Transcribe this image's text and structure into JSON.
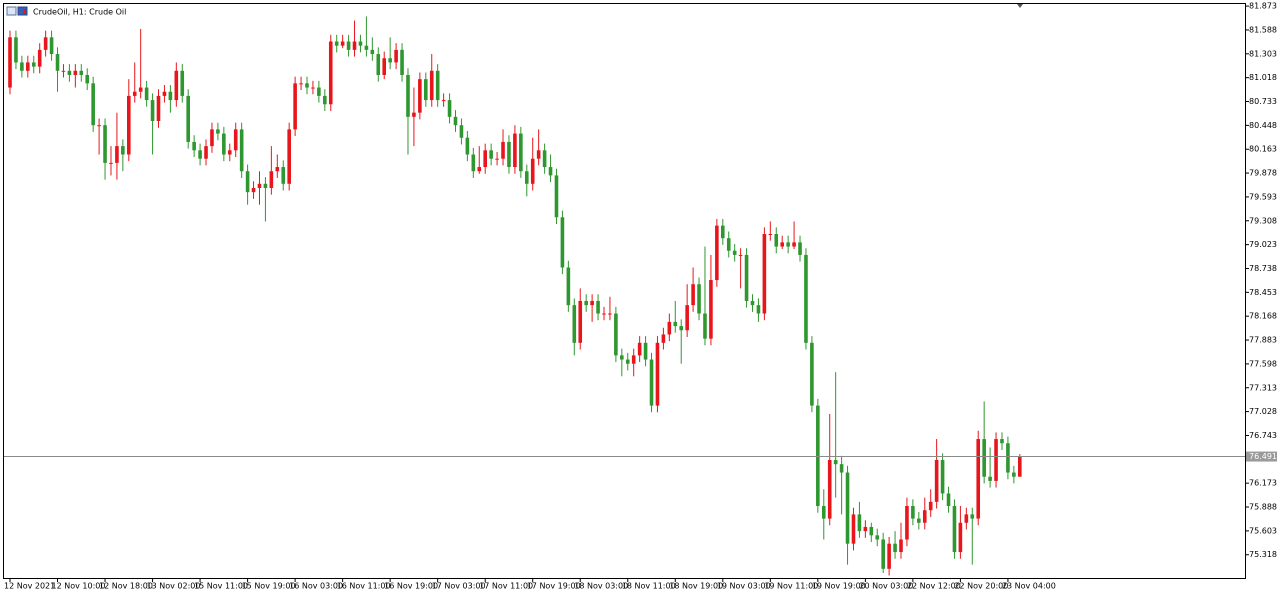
{
  "chart_data": {
    "type": "candlestick",
    "title": "CrudeOil, H1:  Crude Oil",
    "categories": [
      "12 Nov 2021",
      null,
      null,
      null,
      null,
      null,
      null,
      null,
      "12 Nov 10:00",
      null,
      null,
      null,
      null,
      null,
      null,
      null,
      "12 Nov 18:00",
      null,
      null,
      null,
      null,
      null,
      null,
      null,
      "13 Nov 02:00",
      null,
      null,
      null,
      null,
      null,
      null,
      null,
      "15 Nov 11:00",
      null,
      null,
      null,
      null,
      null,
      null,
      null,
      "15 Nov 19:00",
      null,
      null,
      null,
      null,
      null,
      null,
      null,
      "16 Nov 03:00",
      null,
      null,
      null,
      null,
      null,
      null,
      null,
      "16 Nov 11:00",
      null,
      null,
      null,
      null,
      null,
      null,
      null,
      "16 Nov 19:00",
      null,
      null,
      null,
      null,
      null,
      null,
      null,
      "17 Nov 03:00",
      null,
      null,
      null,
      null,
      null,
      null,
      null,
      "17 Nov 11:00",
      null,
      null,
      null,
      null,
      null,
      null,
      null,
      "17 Nov 19:00",
      null,
      null,
      null,
      null,
      null,
      null,
      null,
      "18 Nov 03:00",
      null,
      null,
      null,
      null,
      null,
      null,
      null,
      "18 Nov 11:00",
      null,
      null,
      null,
      null,
      null,
      null,
      null,
      "18 Nov 19:00",
      null,
      null,
      null,
      null,
      null,
      null,
      null,
      "19 Nov 03:00",
      null,
      null,
      null,
      null,
      null,
      null,
      null,
      "19 Nov 11:00",
      null,
      null,
      null,
      null,
      null,
      null,
      null,
      "19 Nov 19:00",
      null,
      null,
      null,
      null,
      null,
      null,
      null,
      "20 Nov 03:00",
      null,
      null,
      null,
      null,
      null,
      null,
      null,
      "22 Nov 12:00",
      null,
      null,
      null,
      null,
      null,
      null,
      null,
      "22 Nov 20:00",
      null,
      null,
      null,
      null,
      null,
      null,
      null,
      "23 Nov 04:00",
      null,
      null
    ],
    "open": [
      80.9,
      81.5,
      81.2,
      81.1,
      81.2,
      81.15,
      81.35,
      81.5,
      81.3,
      81.1,
      81.1,
      81.05,
      81.1,
      81.05,
      80.95,
      80.45,
      80.45,
      80.0,
      80.0,
      80.2,
      80.1,
      80.8,
      80.85,
      80.9,
      80.75,
      80.5,
      80.8,
      80.85,
      80.75,
      81.1,
      80.8,
      80.25,
      80.15,
      80.05,
      80.2,
      80.4,
      80.35,
      80.1,
      80.15,
      80.4,
      79.9,
      79.65,
      79.7,
      79.75,
      79.7,
      79.9,
      79.95,
      79.75,
      80.4,
      80.95,
      80.95,
      80.9,
      80.9,
      80.8,
      80.7,
      81.45,
      81.4,
      81.45,
      81.35,
      81.45,
      81.4,
      81.35,
      81.3,
      81.05,
      81.25,
      81.2,
      81.35,
      81.05,
      80.55,
      80.6,
      81.0,
      80.75,
      81.1,
      80.75,
      80.75,
      80.55,
      80.45,
      80.3,
      80.1,
      79.9,
      79.95,
      80.15,
      80.05,
      80.05,
      80.25,
      79.95,
      80.35,
      79.9,
      79.75,
      80.05,
      80.15,
      79.95,
      79.85,
      79.35,
      78.75,
      78.3,
      77.85,
      78.35,
      78.3,
      78.35,
      78.2,
      78.2,
      78.2,
      77.7,
      77.65,
      77.6,
      77.7,
      77.85,
      77.65,
      77.1,
      77.85,
      77.95,
      78.1,
      78.05,
      78.0,
      78.3,
      78.55,
      78.2,
      77.9,
      78.6,
      79.25,
      79.1,
      78.95,
      78.9,
      78.9,
      78.35,
      78.3,
      78.2,
      79.15,
      79.15,
      79.0,
      79.05,
      79.0,
      79.05,
      78.9,
      77.85,
      77.1,
      75.9,
      75.75,
      76.45,
      76.4,
      76.3,
      75.45,
      75.8,
      75.6,
      75.65,
      75.55,
      75.5,
      75.15,
      75.45,
      75.35,
      75.5,
      75.9,
      75.75,
      75.7,
      75.85,
      75.95,
      76.45,
      76.05,
      75.9,
      75.35,
      75.7,
      75.8,
      75.75,
      76.7,
      76.25,
      76.2,
      76.7,
      76.65,
      76.3,
      76.25
    ],
    "high": [
      81.58,
      81.58,
      81.28,
      81.28,
      81.28,
      81.43,
      81.58,
      81.58,
      81.38,
      81.18,
      81.18,
      81.18,
      81.18,
      81.13,
      81.03,
      80.53,
      80.53,
      80.2,
      80.6,
      80.28,
      81.0,
      81.2,
      81.6,
      80.98,
      80.83,
      80.88,
      80.93,
      80.93,
      81.2,
      81.18,
      80.88,
      80.33,
      80.23,
      80.28,
      80.48,
      80.48,
      80.43,
      80.23,
      80.48,
      80.48,
      79.98,
      79.78,
      79.9,
      79.83,
      80.2,
      80.1,
      80.03,
      80.48,
      81.03,
      81.03,
      81.03,
      80.98,
      80.98,
      80.88,
      81.53,
      81.53,
      81.53,
      81.53,
      81.7,
      81.53,
      81.75,
      81.5,
      81.38,
      81.33,
      81.5,
      81.43,
      81.43,
      81.13,
      80.9,
      81.08,
      81.08,
      81.3,
      81.18,
      80.83,
      80.83,
      80.63,
      80.53,
      80.38,
      80.18,
      80.2,
      80.23,
      80.23,
      80.13,
      80.4,
      80.33,
      80.45,
      80.43,
      79.98,
      80.3,
      80.4,
      80.23,
      80.1,
      79.93,
      79.43,
      78.83,
      78.38,
      78.5,
      78.43,
      78.43,
      78.43,
      78.28,
      78.4,
      78.28,
      77.78,
      77.73,
      77.78,
      77.93,
      77.93,
      77.73,
      77.93,
      78.03,
      78.2,
      78.35,
      78.13,
      78.55,
      78.75,
      78.63,
      79.0,
      78.9,
      79.33,
      79.33,
      79.18,
      79.03,
      78.98,
      78.98,
      78.43,
      78.38,
      79.23,
      79.3,
      79.23,
      79.13,
      79.13,
      79.3,
      79.13,
      78.98,
      77.93,
      77.18,
      76.1,
      77.0,
      77.5,
      76.5,
      76.38,
      75.88,
      75.95,
      75.73,
      75.7,
      75.63,
      75.58,
      75.53,
      75.6,
      75.7,
      76.0,
      75.98,
      75.83,
      76.0,
      76.1,
      76.7,
      76.53,
      76.13,
      75.98,
      75.9,
      75.88,
      75.88,
      76.8,
      77.15,
      76.6,
      76.78,
      76.78,
      76.73,
      76.38,
      76.52
    ],
    "low": [
      80.82,
      81.12,
      81.02,
      81.02,
      81.07,
      81.07,
      81.27,
      81.22,
      80.85,
      81.02,
      80.97,
      80.9,
      80.97,
      80.87,
      80.37,
      80.1,
      79.8,
      79.85,
      79.8,
      79.9,
      80.02,
      80.72,
      80.77,
      80.67,
      80.1,
      80.42,
      80.72,
      80.6,
      80.67,
      80.72,
      80.17,
      80.07,
      79.97,
      79.97,
      80.12,
      80.27,
      80.02,
      80.02,
      80.07,
      79.82,
      79.5,
      79.57,
      79.5,
      79.3,
      79.62,
      79.82,
      79.67,
      79.67,
      80.32,
      80.87,
      80.82,
      80.82,
      80.72,
      80.62,
      80.62,
      81.32,
      81.37,
      81.27,
      81.27,
      81.32,
      81.27,
      81.22,
      80.97,
      81.0,
      81.12,
      81.12,
      80.97,
      80.1,
      80.2,
      80.52,
      80.67,
      80.67,
      80.67,
      80.67,
      80.47,
      80.37,
      80.22,
      80.02,
      79.82,
      79.87,
      79.87,
      79.97,
      79.97,
      79.97,
      79.87,
      79.87,
      79.82,
      79.6,
      79.67,
      79.97,
      79.87,
      79.77,
      79.27,
      78.67,
      78.22,
      77.7,
      77.77,
      78.22,
      78.1,
      78.12,
      78.12,
      78.12,
      77.62,
      77.45,
      77.52,
      77.45,
      77.62,
      77.57,
      77.02,
      77.02,
      77.77,
      77.87,
      77.97,
      77.6,
      77.92,
      78.22,
      78.12,
      77.82,
      77.82,
      78.52,
      79.02,
      78.87,
      78.82,
      78.5,
      78.27,
      78.22,
      78.1,
      78.12,
      79.07,
      78.92,
      78.97,
      78.92,
      78.97,
      78.82,
      77.77,
      77.02,
      75.82,
      75.5,
      75.67,
      76.0,
      75.8,
      75.2,
      75.37,
      75.52,
      75.52,
      75.47,
      75.42,
      75.1,
      75.07,
      75.27,
      75.27,
      75.42,
      75.67,
      75.62,
      75.62,
      75.77,
      75.87,
      75.97,
      75.82,
      75.27,
      75.27,
      75.62,
      75.2,
      75.67,
      76.17,
      76.12,
      76.12,
      76.57,
      76.22,
      76.17,
      76.3
    ],
    "close": [
      81.5,
      81.2,
      81.1,
      81.2,
      81.15,
      81.35,
      81.5,
      81.3,
      81.1,
      81.1,
      81.05,
      81.1,
      81.05,
      80.95,
      80.45,
      80.45,
      80.0,
      80.0,
      80.2,
      80.1,
      80.8,
      80.85,
      80.9,
      80.75,
      80.5,
      80.8,
      80.85,
      80.75,
      81.1,
      80.8,
      80.25,
      80.15,
      80.05,
      80.2,
      80.4,
      80.35,
      80.1,
      80.15,
      80.4,
      79.9,
      79.65,
      79.7,
      79.75,
      79.7,
      79.9,
      79.95,
      79.75,
      80.4,
      80.95,
      80.95,
      80.9,
      80.9,
      80.8,
      80.7,
      81.45,
      81.4,
      81.45,
      81.35,
      81.45,
      81.4,
      81.35,
      81.3,
      81.05,
      81.25,
      81.2,
      81.35,
      81.05,
      80.55,
      80.6,
      81.0,
      80.75,
      81.1,
      80.75,
      80.75,
      80.55,
      80.45,
      80.3,
      80.1,
      79.9,
      79.95,
      80.15,
      80.05,
      80.05,
      80.25,
      79.95,
      80.35,
      79.9,
      79.75,
      80.05,
      80.15,
      79.95,
      79.85,
      79.35,
      78.75,
      78.3,
      77.85,
      78.35,
      78.3,
      78.35,
      78.2,
      78.2,
      78.2,
      77.7,
      77.65,
      77.6,
      77.7,
      77.85,
      77.65,
      77.1,
      77.85,
      77.95,
      78.1,
      78.05,
      78.0,
      78.3,
      78.55,
      78.2,
      77.9,
      78.6,
      79.25,
      79.1,
      78.95,
      78.9,
      78.9,
      78.35,
      78.3,
      78.2,
      79.15,
      79.15,
      79.0,
      79.05,
      79.0,
      79.05,
      78.9,
      77.85,
      77.1,
      75.9,
      75.75,
      76.45,
      76.4,
      76.3,
      75.45,
      75.8,
      75.6,
      75.65,
      75.55,
      75.5,
      75.15,
      75.45,
      75.35,
      75.5,
      75.9,
      75.75,
      75.7,
      75.85,
      75.95,
      76.45,
      76.05,
      75.9,
      75.35,
      75.7,
      75.8,
      75.75,
      76.7,
      76.25,
      76.2,
      76.7,
      76.65,
      76.3,
      76.25,
      76.49
    ],
    "up_color": "#e8161c",
    "down_color": "#2f972f",
    "ylim": [
      75.04,
      81.91
    ],
    "yticks": [
      81.873,
      81.588,
      81.303,
      81.018,
      80.733,
      80.448,
      80.163,
      79.878,
      79.593,
      79.308,
      79.023,
      78.738,
      78.453,
      78.168,
      77.883,
      77.598,
      77.313,
      77.028,
      76.743,
      76.173,
      75.888,
      75.603,
      75.318
    ],
    "last_price": 76.491
  }
}
